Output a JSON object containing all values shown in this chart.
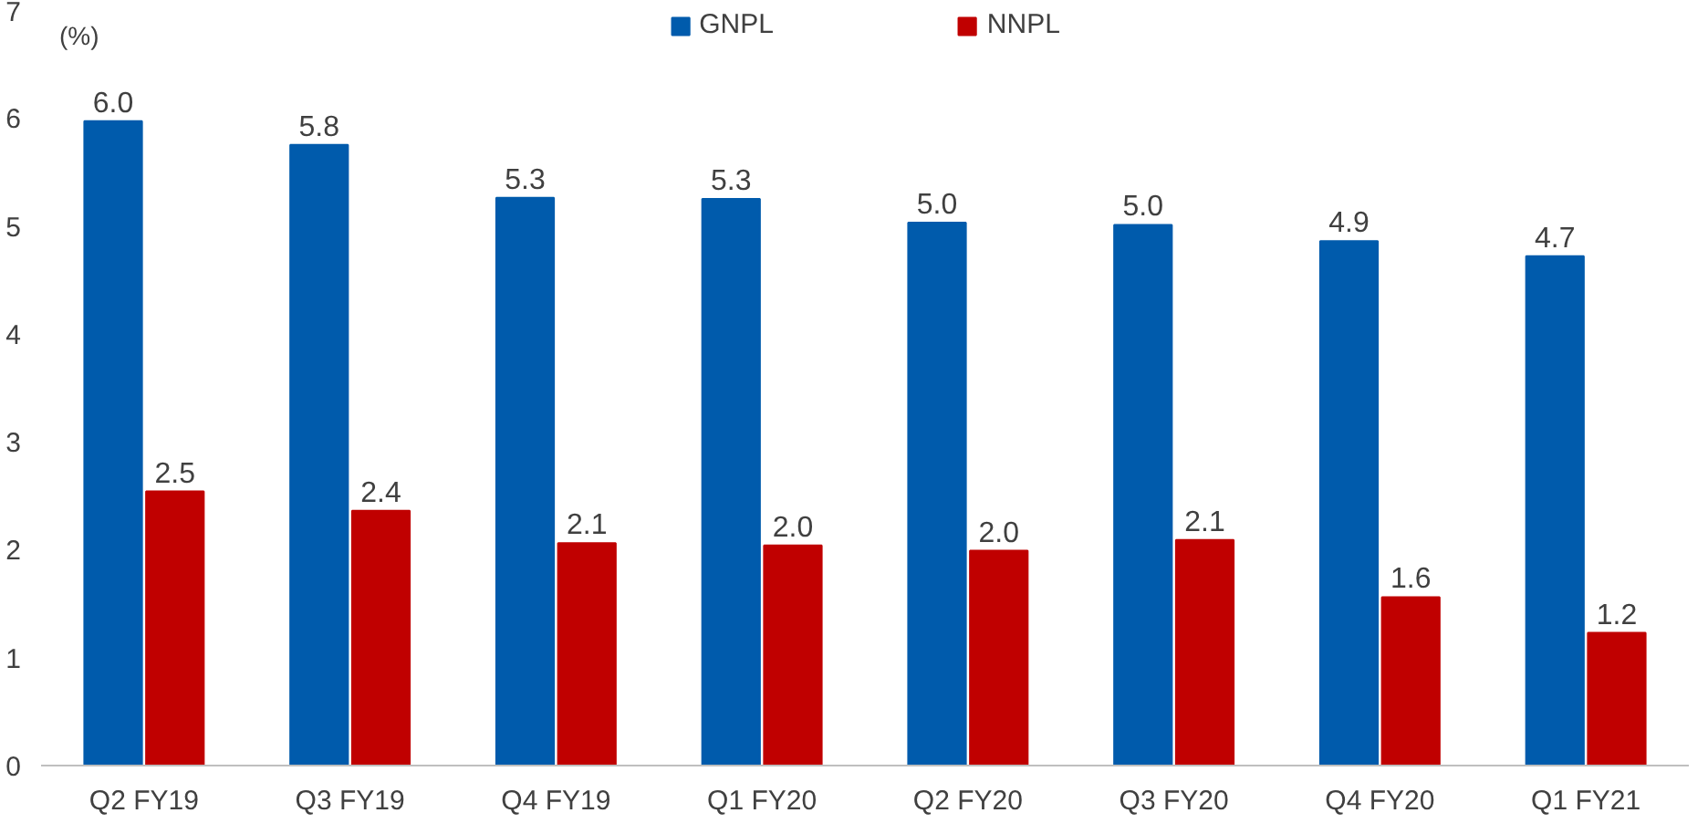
{
  "chart_data": {
    "type": "bar",
    "ylabel": "(%)",
    "categories": [
      "Q2 FY19",
      "Q3 FY19",
      "Q4 FY19",
      "Q1 FY20",
      "Q2 FY20",
      "Q3 FY20",
      "Q4 FY20",
      "Q1 FY21"
    ],
    "series": [
      {
        "name": "GNPL",
        "color": "#005bac",
        "values": [
          5.97,
          5.75,
          5.26,
          5.25,
          5.03,
          5.01,
          4.86,
          4.72
        ],
        "value_labels": [
          "6.0",
          "5.8",
          "5.3",
          "5.3",
          "5.0",
          "5.0",
          "4.9",
          "4.7"
        ]
      },
      {
        "name": "NNPL",
        "color": "#c00000",
        "values": [
          2.54,
          2.36,
          2.06,
          2.04,
          1.99,
          2.09,
          1.56,
          1.23
        ],
        "value_labels": [
          "2.5",
          "2.4",
          "2.1",
          "2.0",
          "2.0",
          "2.1",
          "1.6",
          "1.2"
        ]
      }
    ],
    "ylim": [
      0,
      7
    ],
    "yticks": [
      0,
      1,
      2,
      3,
      4,
      5,
      6,
      7
    ],
    "legend": "top"
  }
}
